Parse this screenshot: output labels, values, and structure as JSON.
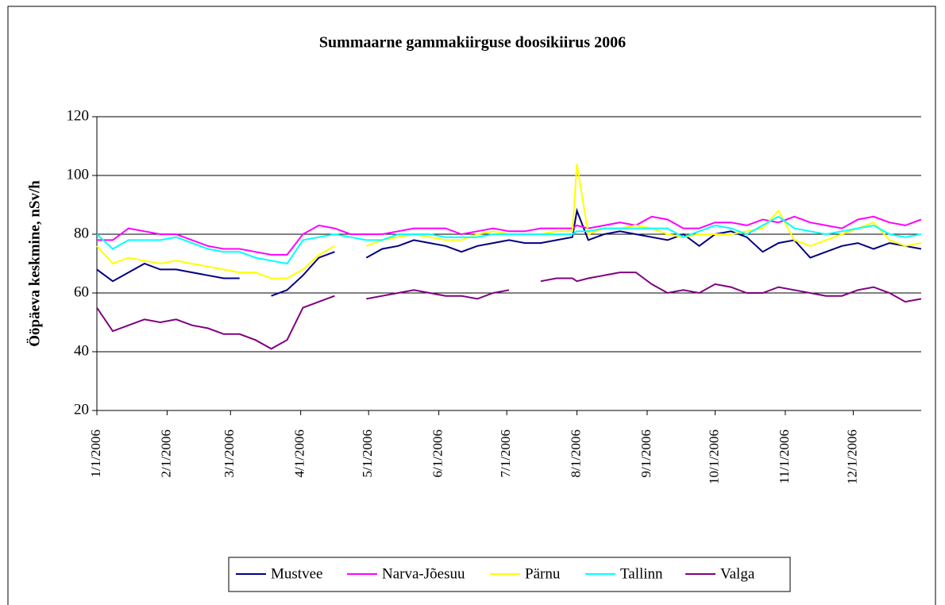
{
  "chart_data": {
    "type": "line",
    "title": "Summaarne gammakiirguse doosikiirus 2006",
    "y_label": "Ööpäeva keskmine, nSv/h",
    "x": [
      "1/1/2006",
      "1/8/2006",
      "1/15/2006",
      "1/22/2006",
      "1/29/2006",
      "2/5/2006",
      "2/12/2006",
      "2/19/2006",
      "2/26/2006",
      "3/5/2006",
      "3/12/2006",
      "3/19/2006",
      "3/26/2006",
      "4/2/2006",
      "4/9/2006",
      "4/16/2006",
      "4/23/2006",
      "4/30/2006",
      "5/7/2006",
      "5/14/2006",
      "5/21/2006",
      "5/28/2006",
      "6/4/2006",
      "6/11/2006",
      "6/18/2006",
      "6/25/2006",
      "7/2/2006",
      "7/9/2006",
      "7/16/2006",
      "7/23/2006",
      "7/30/2006",
      "8/1/2006",
      "8/6/2006",
      "8/13/2006",
      "8/20/2006",
      "8/27/2006",
      "9/3/2006",
      "9/10/2006",
      "9/17/2006",
      "9/24/2006",
      "10/1/2006",
      "10/8/2006",
      "10/15/2006",
      "10/22/2006",
      "10/29/2006",
      "11/5/2006",
      "11/12/2006",
      "11/19/2006",
      "11/26/2006",
      "12/3/2006",
      "12/10/2006",
      "12/17/2006",
      "12/24/2006",
      "12/31/2006"
    ],
    "series": [
      {
        "name": "Mustvee",
        "color": "#000080",
        "values": [
          68,
          64,
          67,
          70,
          68,
          68,
          67,
          66,
          65,
          65,
          null,
          59,
          61,
          66,
          72,
          74,
          null,
          72,
          75,
          76,
          78,
          77,
          76,
          74,
          76,
          77,
          78,
          77,
          77,
          78,
          79,
          88,
          78,
          80,
          81,
          80,
          79,
          78,
          80,
          76,
          80,
          81,
          79,
          74,
          77,
          78,
          72,
          74,
          76,
          77,
          75,
          77,
          76,
          75
        ]
      },
      {
        "name": "Narva-Jõesuu",
        "color": "#ff00ff",
        "values": [
          78,
          78,
          82,
          81,
          80,
          80,
          78,
          76,
          75,
          75,
          74,
          73,
          73,
          80,
          83,
          82,
          80,
          80,
          80,
          81,
          82,
          82,
          82,
          80,
          81,
          82,
          81,
          81,
          82,
          82,
          82,
          83,
          82,
          83,
          84,
          83,
          86,
          85,
          82,
          82,
          84,
          84,
          83,
          85,
          84,
          86,
          84,
          83,
          82,
          85,
          86,
          84,
          83,
          85
        ]
      },
      {
        "name": "Pärnu",
        "color": "#ffff00",
        "values": [
          76,
          70,
          72,
          71,
          70,
          71,
          70,
          69,
          68,
          67,
          67,
          65,
          65,
          68,
          73,
          76,
          null,
          76,
          78,
          79,
          80,
          79,
          78,
          78,
          80,
          81,
          80,
          80,
          80,
          81,
          81,
          104,
          80,
          82,
          82,
          83,
          82,
          80,
          79,
          80,
          80,
          80,
          81,
          82,
          88,
          78,
          76,
          78,
          80,
          82,
          84,
          78,
          76,
          77
        ]
      },
      {
        "name": "Tallinn",
        "color": "#00ffff",
        "values": [
          80,
          75,
          78,
          78,
          78,
          79,
          77,
          75,
          74,
          74,
          72,
          71,
          70,
          78,
          79,
          80,
          79,
          78,
          78,
          80,
          80,
          80,
          79,
          79,
          79,
          80,
          80,
          80,
          80,
          80,
          80,
          81,
          81,
          82,
          82,
          82,
          82,
          82,
          79,
          81,
          83,
          82,
          80,
          83,
          86,
          82,
          81,
          80,
          81,
          82,
          83,
          80,
          79,
          80
        ]
      },
      {
        "name": "Valga",
        "color": "#800080",
        "values": [
          55,
          47,
          49,
          51,
          50,
          51,
          49,
          48,
          46,
          46,
          44,
          41,
          44,
          55,
          57,
          59,
          null,
          58,
          59,
          60,
          61,
          60,
          59,
          59,
          58,
          60,
          61,
          null,
          64,
          65,
          65,
          64,
          65,
          66,
          67,
          67,
          63,
          60,
          61,
          60,
          63,
          62,
          60,
          60,
          62,
          61,
          60,
          59,
          59,
          61,
          62,
          60,
          57,
          58
        ]
      }
    ],
    "xlim": [
      "1/1/2006",
      "12/31/2006"
    ],
    "xticks": [
      "1/1/2006",
      "2/1/2006",
      "3/1/2006",
      "4/1/2006",
      "5/1/2006",
      "6/1/2006",
      "7/1/2006",
      "8/1/2006",
      "9/1/2006",
      "10/1/2006",
      "11/1/2006",
      "12/1/2006"
    ],
    "ylim": [
      20,
      120
    ],
    "yticks": [
      20,
      40,
      60,
      80,
      100,
      120
    ],
    "grid": true,
    "legend": "bottom"
  }
}
